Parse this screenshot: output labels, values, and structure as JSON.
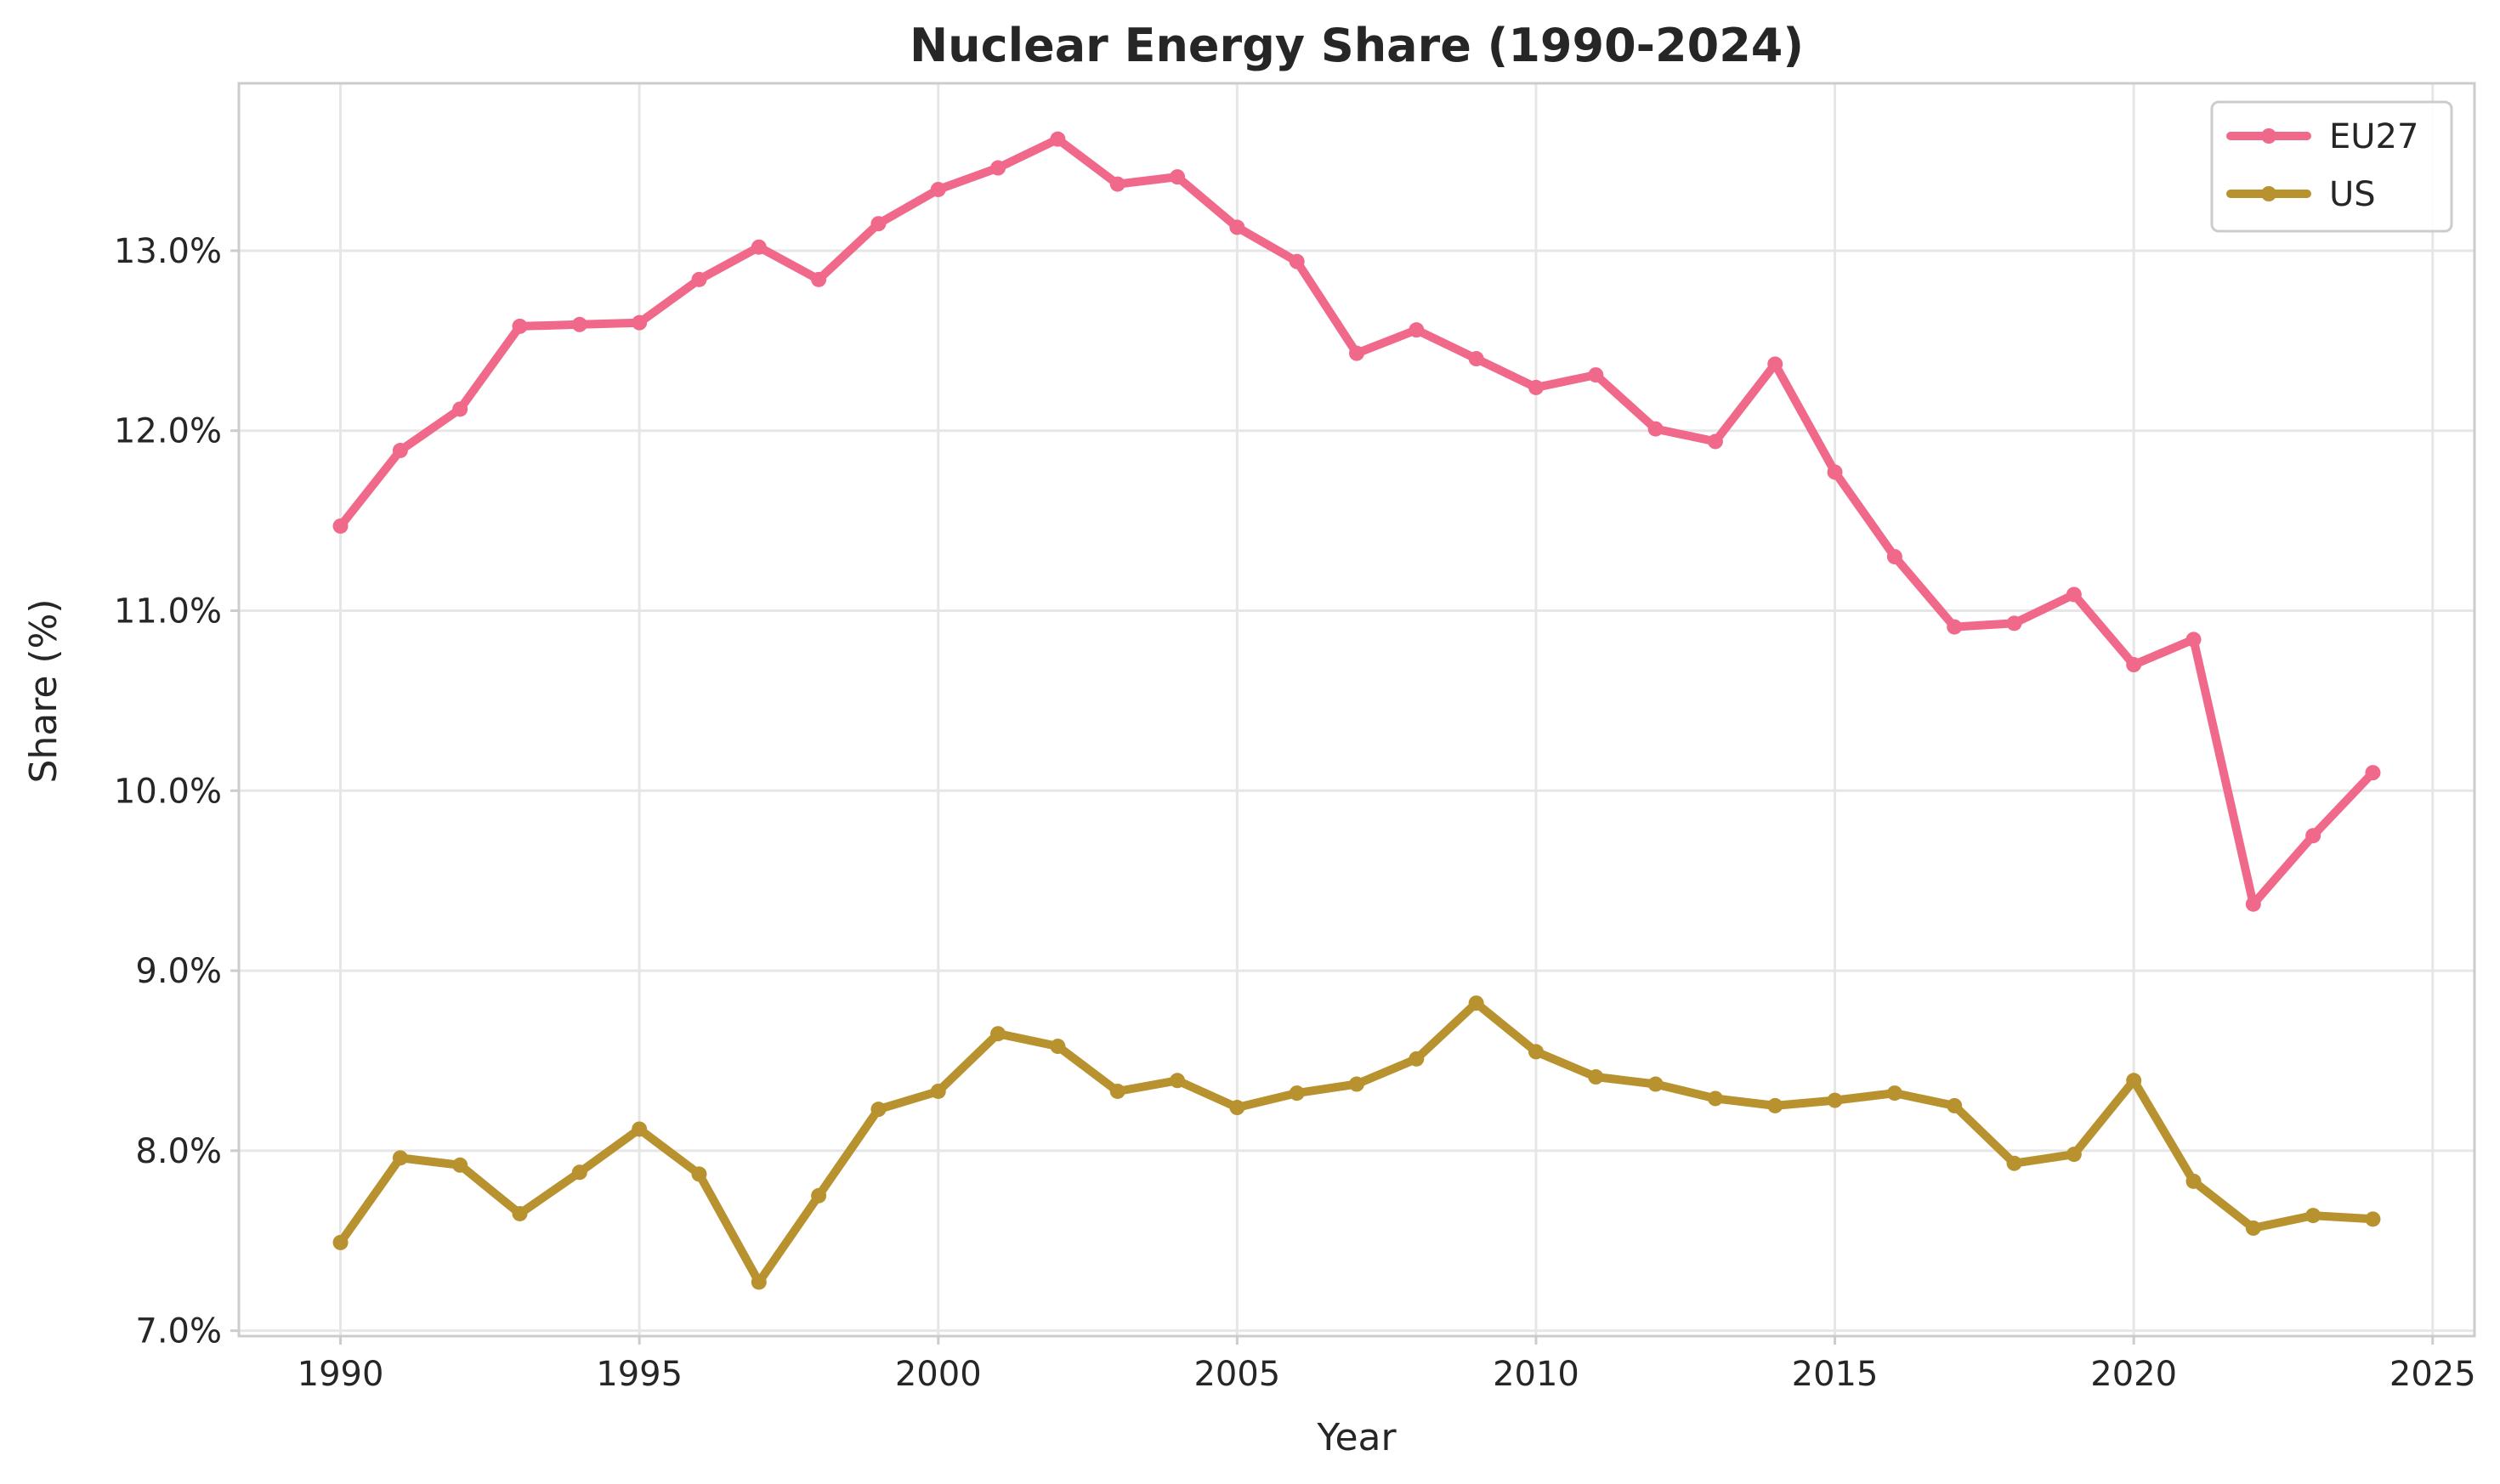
{
  "chart_data": {
    "type": "line",
    "title": "Nuclear Energy Share (1990-2024)",
    "xlabel": "Year",
    "ylabel": "Share (%)",
    "xlim": [
      1988.3,
      2025.7
    ],
    "ylim": [
      6.97,
      13.93
    ],
    "xticks": [
      1990,
      1995,
      2000,
      2005,
      2010,
      2015,
      2020,
      2025
    ],
    "xtick_labels": [
      "1990",
      "1995",
      "2000",
      "2005",
      "2010",
      "2015",
      "2020",
      "2025"
    ],
    "yticks": [
      7.0,
      8.0,
      9.0,
      10.0,
      11.0,
      12.0,
      13.0
    ],
    "ytick_labels": [
      "7.0%",
      "8.0%",
      "9.0%",
      "10.0%",
      "11.0%",
      "12.0%",
      "13.0%"
    ],
    "grid": true,
    "legend_position": "top-right",
    "x": [
      1990,
      1991,
      1992,
      1993,
      1994,
      1995,
      1996,
      1997,
      1998,
      1999,
      2000,
      2001,
      2002,
      2003,
      2004,
      2005,
      2006,
      2007,
      2008,
      2009,
      2010,
      2011,
      2012,
      2013,
      2014,
      2015,
      2016,
      2017,
      2018,
      2019,
      2020,
      2021,
      2022,
      2023,
      2024
    ],
    "series": [
      {
        "name": "EU27",
        "color": "#f0698a",
        "values": [
          11.47,
          11.89,
          12.12,
          12.58,
          12.59,
          12.6,
          12.84,
          13.02,
          12.84,
          13.15,
          13.34,
          13.46,
          13.62,
          13.37,
          13.41,
          13.13,
          12.94,
          12.43,
          12.56,
          12.4,
          12.24,
          12.31,
          12.01,
          11.94,
          12.37,
          11.77,
          11.3,
          10.91,
          10.93,
          11.09,
          10.7,
          10.84,
          9.37,
          9.75,
          10.1
        ]
      },
      {
        "name": "US",
        "color": "#b8922e",
        "values": [
          7.49,
          7.96,
          7.92,
          7.65,
          7.88,
          8.12,
          7.87,
          7.27,
          7.75,
          8.23,
          8.33,
          8.65,
          8.58,
          8.33,
          8.39,
          8.24,
          8.32,
          8.37,
          8.51,
          8.82,
          8.55,
          8.41,
          8.37,
          8.29,
          8.25,
          8.28,
          8.32,
          8.25,
          7.93,
          7.98,
          8.39,
          7.83,
          7.57,
          7.64,
          7.62
        ]
      }
    ]
  }
}
